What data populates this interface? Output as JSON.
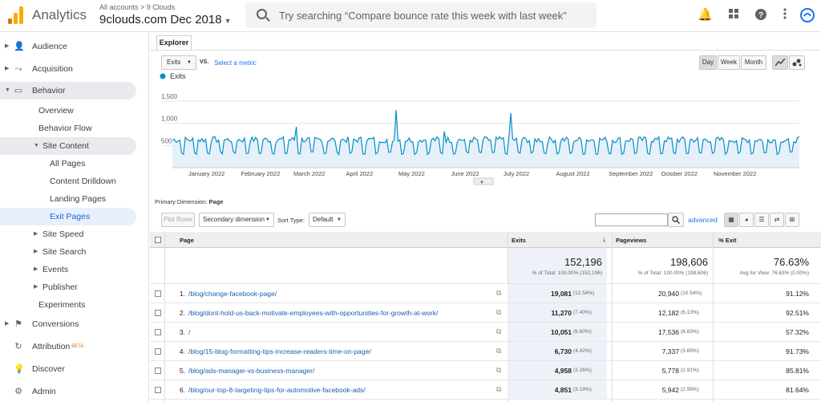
{
  "app": {
    "name": "Analytics",
    "breadcrumb": "All accounts > 9 Clouds",
    "account": "9clouds.com Dec 2018"
  },
  "search": {
    "placeholder": "Try searching “Compare bounce rate this week with last week”"
  },
  "top_icons": [
    "bell-icon",
    "apps-icon",
    "help-icon",
    "more-icon",
    "account-icon"
  ],
  "sidebar": {
    "items": [
      {
        "label": "Audience",
        "icon": "person-icon"
      },
      {
        "label": "Acquisition",
        "icon": "acquisition-icon"
      },
      {
        "label": "Behavior",
        "icon": "behavior-icon"
      },
      {
        "label": "Overview"
      },
      {
        "label": "Behavior Flow"
      },
      {
        "label": "Site Content"
      },
      {
        "label": "All Pages"
      },
      {
        "label": "Content Drilldown"
      },
      {
        "label": "Landing Pages"
      },
      {
        "label": "Exit Pages"
      },
      {
        "label": "Site Speed"
      },
      {
        "label": "Site Search"
      },
      {
        "label": "Events"
      },
      {
        "label": "Publisher"
      },
      {
        "label": "Experiments"
      },
      {
        "label": "Conversions",
        "icon": "flag-icon"
      },
      {
        "label": "Attribution",
        "badge": "BETA",
        "icon": "attribution-icon"
      },
      {
        "label": "Discover",
        "icon": "lightbulb-icon"
      },
      {
        "label": "Admin",
        "icon": "gear-icon"
      }
    ]
  },
  "explorer": {
    "tab": "Explorer",
    "metric": "Exits",
    "vs": "VS.",
    "select_metric": "Select a metric",
    "periods": [
      "Day",
      "Week",
      "Month"
    ]
  },
  "chart_data": {
    "type": "line",
    "series": [
      {
        "name": "Exits"
      }
    ],
    "y_ticks": [
      "1,500",
      "1,000",
      "500"
    ],
    "x_ticks": [
      "January 2022",
      "February 2022",
      "March 2022",
      "April 2022",
      "May 2022",
      "June 2022",
      "July 2022",
      "August 2022",
      "September 2022",
      "October 2022",
      "November 2022"
    ],
    "ylim": [
      0,
      1700
    ],
    "days": 340,
    "spikes": [
      {
        "day": 121,
        "value": 1300
      },
      {
        "day": 183,
        "value": 1230
      },
      {
        "day": 67,
        "value": 920
      },
      {
        "day": 147,
        "value": 820
      }
    ],
    "color": "#058dc7"
  },
  "primary_dimension": {
    "label": "Primary Dimension:",
    "value": "Page"
  },
  "toolbar": {
    "plot_rows": "Plot Rows",
    "secondary": "Secondary dimension",
    "sort_type_label": "Sort Type:",
    "sort_type": "Default",
    "advanced": "advanced"
  },
  "table": {
    "headers": {
      "page": "Page",
      "exits": "Exits",
      "pageviews": "Pageviews",
      "pct_exit": "% Exit"
    },
    "totals": {
      "exits": "152,196",
      "exits_sub": "% of Total: 100.00% (152,196)",
      "pageviews": "198,606",
      "pageviews_sub": "% of Total: 100.00% (198,606)",
      "pct_exit": "76.63%",
      "pct_exit_sub": "Avg for View: 76.63% (0.00%)"
    },
    "rows": [
      {
        "n": "1.",
        "page": "/blog/change-facebook-page/",
        "exits": "19,081",
        "exits_pct": "(12.54%)",
        "pv": "20,940",
        "pv_pct": "(10.54%)",
        "pe": "91.12%"
      },
      {
        "n": "2.",
        "page": "/blog/dont-hold-us-back-motivate-employees-with-opportunities-for-growth-at-work/",
        "exits": "11,270",
        "exits_pct": "(7.40%)",
        "pv": "12,182",
        "pv_pct": "(6.13%)",
        "pe": "92.51%"
      },
      {
        "n": "3.",
        "page": "/",
        "exits": "10,051",
        "exits_pct": "(6.60%)",
        "pv": "17,536",
        "pv_pct": "(8.83%)",
        "pe": "57.32%"
      },
      {
        "n": "4.",
        "page": "/blog/15-blog-formatting-tips-increase-readers-time-on-page/",
        "exits": "6,730",
        "exits_pct": "(4.42%)",
        "pv": "7,337",
        "pv_pct": "(3.69%)",
        "pe": "91.73%"
      },
      {
        "n": "5.",
        "page": "/blog/ads-manager-vs-business-manager/",
        "exits": "4,958",
        "exits_pct": "(3.26%)",
        "pv": "5,778",
        "pv_pct": "(2.91%)",
        "pe": "85.81%"
      },
      {
        "n": "6.",
        "page": "/blog/our-top-8-targeting-tips-for-automotive-facebook-ads/",
        "exits": "4,851",
        "exits_pct": "(3.19%)",
        "pv": "5,942",
        "pv_pct": "(2.99%)",
        "pe": "81.64%"
      }
    ]
  }
}
